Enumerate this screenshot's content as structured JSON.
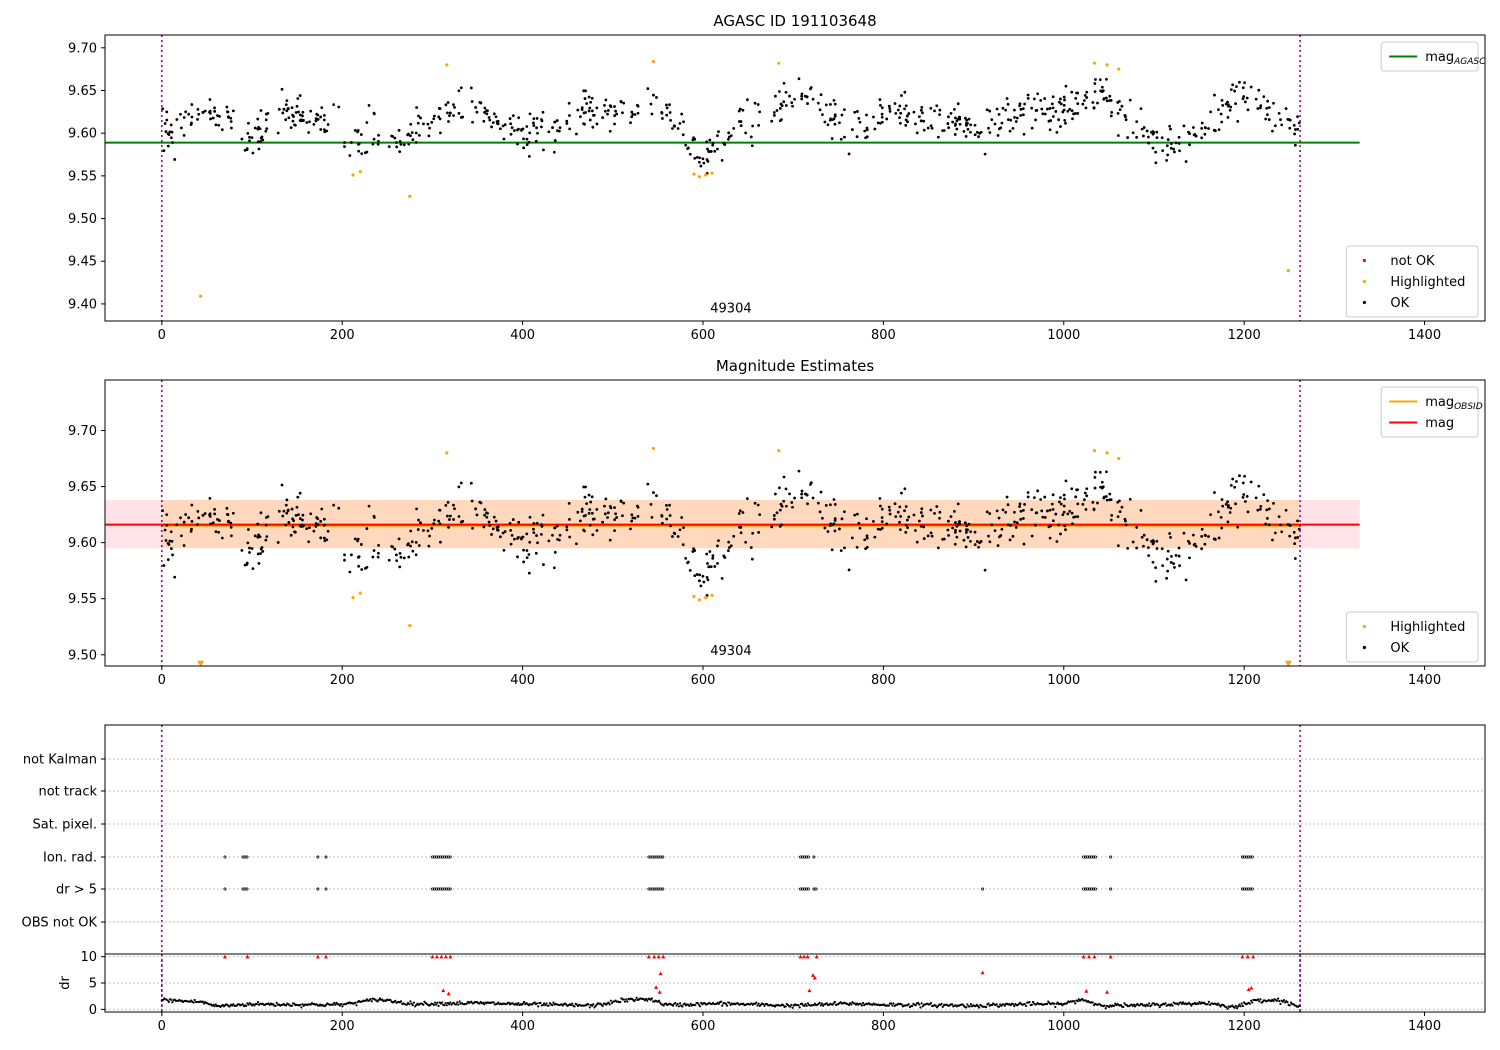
{
  "chart_data": [
    {
      "type": "scatter",
      "title": "AGASC ID 191103648",
      "xlabel": "",
      "ylabel": "",
      "xlim": [
        -63,
        1467
      ],
      "ylim": [
        9.38,
        9.715
      ],
      "xticks": [
        0,
        200,
        400,
        600,
        800,
        1000,
        1200,
        1400
      ],
      "yticks": [
        9.4,
        9.45,
        9.5,
        9.55,
        9.6,
        9.65,
        9.7
      ],
      "ytick_labels": [
        "9.40",
        "9.45",
        "9.50",
        "9.55",
        "9.60",
        "9.65",
        "9.70"
      ],
      "vlines": [
        0,
        1262
      ],
      "hline": {
        "name": "mag_AGASC",
        "y": 9.589,
        "x_range": [
          -63,
          1328
        ],
        "color": "#008000"
      },
      "obsid_label": {
        "text": "49304",
        "x": 631,
        "y": 9.39
      },
      "series": [
        {
          "name": "not OK",
          "color": "#ff0000",
          "points": []
        },
        {
          "name": "Highlighted",
          "color": "#ffa500",
          "points": [
            [
              43,
              9.409
            ],
            [
              212,
              9.551
            ],
            [
              220,
              9.555
            ],
            [
              275,
              9.526
            ],
            [
              316,
              9.68
            ],
            [
              545,
              9.684
            ],
            [
              590,
              9.552
            ],
            [
              596,
              9.549
            ],
            [
              603,
              9.551
            ],
            [
              610,
              9.553
            ],
            [
              684,
              9.682
            ],
            [
              1034,
              9.682
            ],
            [
              1048,
              9.68
            ],
            [
              1061,
              9.675
            ],
            [
              1249,
              9.439
            ]
          ]
        },
        {
          "name": "OK",
          "color": "#000000",
          "trend": [
            [
              0,
              9.598
            ],
            [
              30,
              9.618
            ],
            [
              60,
              9.622
            ],
            [
              100,
              9.596
            ],
            [
              140,
              9.622
            ],
            [
              180,
              9.612
            ],
            [
              195,
              9.635
            ],
            [
              205,
              9.578
            ],
            [
              230,
              9.598
            ],
            [
              260,
              9.592
            ],
            [
              300,
              9.608
            ],
            [
              330,
              9.636
            ],
            [
              360,
              9.618
            ],
            [
              400,
              9.598
            ],
            [
              440,
              9.605
            ],
            [
              470,
              9.625
            ],
            [
              500,
              9.622
            ],
            [
              550,
              9.63
            ],
            [
              575,
              9.605
            ],
            [
              600,
              9.568
            ],
            [
              630,
              9.606
            ],
            [
              660,
              9.615
            ],
            [
              700,
              9.646
            ],
            [
              740,
              9.628
            ],
            [
              770,
              9.6
            ],
            [
              810,
              9.636
            ],
            [
              840,
              9.616
            ],
            [
              880,
              9.615
            ],
            [
              910,
              9.6
            ],
            [
              950,
              9.625
            ],
            [
              1000,
              9.628
            ],
            [
              1040,
              9.65
            ],
            [
              1070,
              9.61
            ],
            [
              1100,
              9.595
            ],
            [
              1130,
              9.588
            ],
            [
              1160,
              9.605
            ],
            [
              1200,
              9.65
            ],
            [
              1262,
              9.605
            ]
          ],
          "jitter": 0.02,
          "count": 800
        }
      ],
      "legends": [
        {
          "position": "upper right",
          "entries": [
            {
              "label": "mag",
              "sub": "AGASC",
              "kind": "line",
              "color": "#008000"
            }
          ]
        },
        {
          "position": "lower right",
          "entries": [
            {
              "label": "not OK",
              "kind": "dot",
              "color": "#ff0000"
            },
            {
              "label": "Highlighted",
              "kind": "dot",
              "color": "#ffa500"
            },
            {
              "label": "OK",
              "kind": "dot",
              "color": "#000000"
            }
          ]
        }
      ]
    },
    {
      "type": "scatter",
      "title": "Magnitude Estimates",
      "xlabel": "",
      "ylabel": "",
      "xlim": [
        -63,
        1467
      ],
      "ylim": [
        9.49,
        9.745
      ],
      "xticks": [
        0,
        200,
        400,
        600,
        800,
        1000,
        1200,
        1400
      ],
      "yticks": [
        9.5,
        9.55,
        9.6,
        9.65,
        9.7
      ],
      "ytick_labels": [
        "9.50",
        "9.55",
        "9.60",
        "9.65",
        "9.70"
      ],
      "vlines": [
        0,
        1262
      ],
      "band": {
        "y_low": 9.595,
        "y_high": 9.638,
        "x_range": [
          -63,
          1328
        ],
        "color": "#ffc0cb"
      },
      "obsid_band": {
        "y_low": 9.595,
        "y_high": 9.638,
        "x_range": [
          0,
          1262
        ],
        "color": "#ffa500"
      },
      "hline": {
        "name": "mag",
        "y": 9.616,
        "x_range": [
          -63,
          1328
        ],
        "color": "#ff0000"
      },
      "obsid_line": {
        "name": "mag_OBSID",
        "y": 9.615,
        "x_range": [
          0,
          1262
        ],
        "color": "#ffa500"
      },
      "obsid_label": {
        "text": "49304",
        "x": 631,
        "y": 9.5
      },
      "series": [
        {
          "name": "Highlighted",
          "color": "#ffa500",
          "points": [
            [
              212,
              9.551
            ],
            [
              220,
              9.555
            ],
            [
              275,
              9.526
            ],
            [
              316,
              9.68
            ],
            [
              545,
              9.684
            ],
            [
              590,
              9.552
            ],
            [
              596,
              9.549
            ],
            [
              603,
              9.551
            ],
            [
              610,
              9.553
            ],
            [
              684,
              9.682
            ],
            [
              1034,
              9.682
            ],
            [
              1048,
              9.68
            ],
            [
              1061,
              9.675
            ]
          ]
        },
        {
          "name": "Highlighted (off-scale)",
          "color": "#ffa500",
          "marker": "triangle-down",
          "points": [
            [
              43,
              9.492
            ],
            [
              1249,
              9.492
            ]
          ]
        },
        {
          "name": "OK",
          "color": "#000000",
          "same_as_panel": 0
        }
      ],
      "legends": [
        {
          "position": "upper right",
          "entries": [
            {
              "label": "mag",
              "sub": "OBSID",
              "kind": "line",
              "color": "#ffa500"
            },
            {
              "label": "mag",
              "kind": "line",
              "color": "#ff0000"
            }
          ]
        },
        {
          "position": "lower right",
          "entries": [
            {
              "label": "Highlighted",
              "kind": "dot",
              "color": "#ffa500"
            },
            {
              "label": "OK",
              "kind": "dot",
              "color": "#000000"
            }
          ]
        }
      ]
    },
    {
      "type": "scatter",
      "title": "",
      "xlabel": "",
      "ylabel": "",
      "xlim": [
        -63,
        1467
      ],
      "vlines": [
        0,
        1262
      ],
      "categories": [
        "not Kalman",
        "not track",
        "Sat. pixel.",
        "Ion. rad.",
        "dr > 5",
        "OBS not OK"
      ],
      "flags": {
        "Ion. rad.": [
          [
            70,
            70
          ],
          [
            90,
            95
          ],
          [
            173,
            173
          ],
          [
            182,
            182
          ],
          [
            300,
            320
          ],
          [
            540,
            556
          ],
          [
            708,
            718
          ],
          [
            723,
            723
          ],
          [
            1022,
            1036
          ],
          [
            1052,
            1052
          ],
          [
            1198,
            1210
          ]
        ],
        "dr > 5": [
          [
            70,
            70
          ],
          [
            90,
            95
          ],
          [
            173,
            173
          ],
          [
            182,
            182
          ],
          [
            300,
            320
          ],
          [
            540,
            556
          ],
          [
            708,
            718
          ],
          [
            723,
            726
          ],
          [
            910,
            910
          ],
          [
            1022,
            1036
          ],
          [
            1052,
            1052
          ],
          [
            1198,
            1210
          ]
        ]
      }
    },
    {
      "type": "scatter",
      "title": "",
      "xlabel": "",
      "ylabel": "dr",
      "xlim": [
        -63,
        1467
      ],
      "ylim": [
        -0.5,
        10.5
      ],
      "yticks": [
        0,
        5,
        10
      ],
      "ytick_labels": [
        "0",
        "5",
        "10"
      ],
      "vlines": [
        0,
        1262
      ],
      "dr_trend": [
        [
          0,
          1.8
        ],
        [
          20,
          1.6
        ],
        [
          45,
          1.4
        ],
        [
          60,
          0.6
        ],
        [
          100,
          1.0
        ],
        [
          150,
          0.9
        ],
        [
          200,
          0.9
        ],
        [
          240,
          1.9
        ],
        [
          280,
          1.0
        ],
        [
          300,
          1.1
        ],
        [
          350,
          1.2
        ],
        [
          420,
          0.9
        ],
        [
          480,
          0.7
        ],
        [
          510,
          1.7
        ],
        [
          540,
          2.0
        ],
        [
          560,
          0.8
        ],
        [
          620,
          1.1
        ],
        [
          700,
          0.7
        ],
        [
          760,
          1.1
        ],
        [
          800,
          0.9
        ],
        [
          860,
          0.8
        ],
        [
          900,
          0.7
        ],
        [
          960,
          1.0
        ],
        [
          1000,
          1.0
        ],
        [
          1020,
          1.9
        ],
        [
          1040,
          0.8
        ],
        [
          1080,
          0.7
        ],
        [
          1120,
          1.0
        ],
        [
          1160,
          1.2
        ],
        [
          1190,
          0.4
        ],
        [
          1215,
          1.8
        ],
        [
          1240,
          1.7
        ],
        [
          1262,
          0.5
        ]
      ],
      "dr_big": [
        [
          95,
          10
        ],
        [
          70,
          10
        ],
        [
          173,
          10
        ],
        [
          182,
          10
        ],
        [
          300,
          10
        ],
        [
          305,
          10
        ],
        [
          310,
          10
        ],
        [
          315,
          10
        ],
        [
          320,
          10
        ],
        [
          312,
          3.6
        ],
        [
          318,
          3.0
        ],
        [
          540,
          10
        ],
        [
          546,
          10
        ],
        [
          551,
          10
        ],
        [
          556,
          10
        ],
        [
          548,
          4.2
        ],
        [
          552,
          3.3
        ],
        [
          553,
          6.8
        ],
        [
          708,
          10
        ],
        [
          712,
          10
        ],
        [
          716,
          10
        ],
        [
          718,
          3.6
        ],
        [
          722,
          6.5
        ],
        [
          724,
          6.0
        ],
        [
          726,
          10
        ],
        [
          910,
          7.0
        ],
        [
          1022,
          10
        ],
        [
          1028,
          10
        ],
        [
          1034,
          10
        ],
        [
          1025,
          3.5
        ],
        [
          1048,
          3.3
        ],
        [
          1052,
          10
        ],
        [
          1198,
          10
        ],
        [
          1204,
          10
        ],
        [
          1210,
          10
        ],
        [
          1205,
          3.8
        ],
        [
          1208,
          4.1
        ]
      ]
    }
  ]
}
